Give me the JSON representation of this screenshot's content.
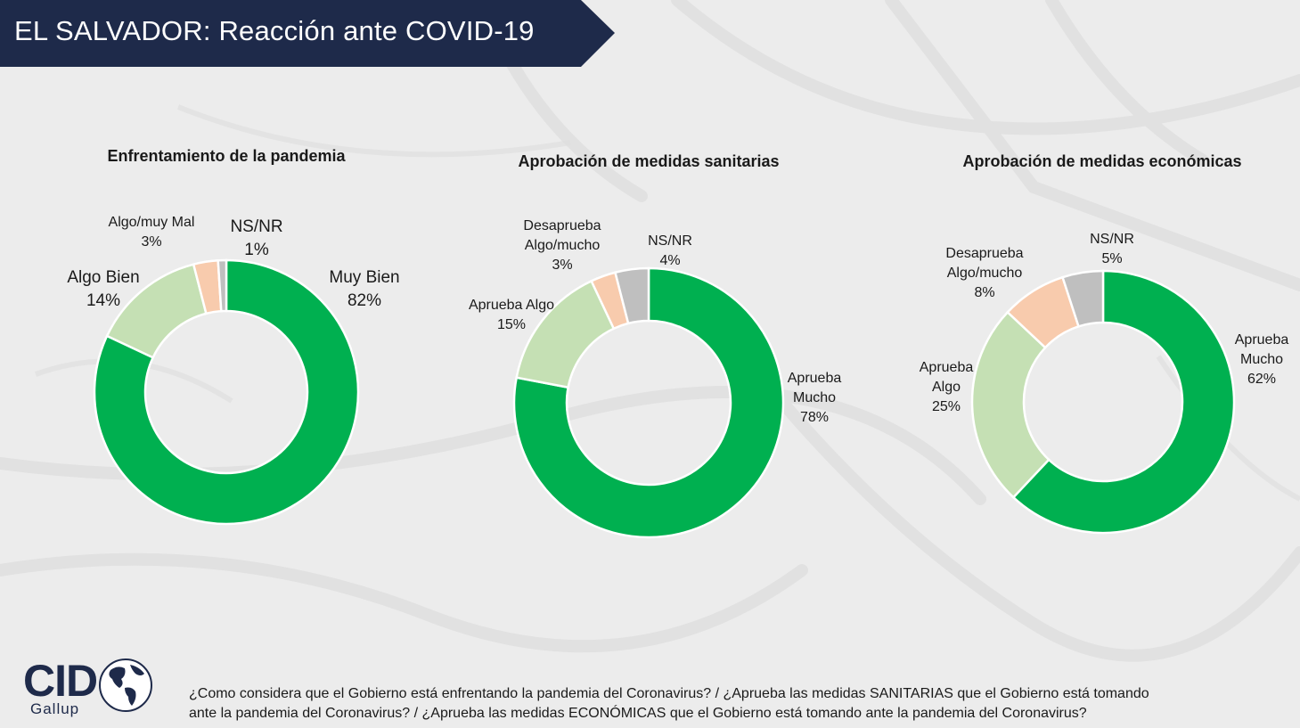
{
  "header": {
    "title": "EL SALVADOR: Reacción ante COVID-19"
  },
  "colors": {
    "banner": "#1e2a4a",
    "dark_green": "#00b050",
    "light_green": "#c5e0b4",
    "peach": "#f8cbad",
    "gray": "#bfbfbf"
  },
  "chart_data": [
    {
      "type": "pie",
      "title": "Enfrentamiento de la pandemia",
      "slices": [
        {
          "label": [
            "Muy Bien",
            "82%"
          ],
          "value": 82,
          "color": "#00b050"
        },
        {
          "label": [
            "Algo Bien",
            "14%"
          ],
          "value": 14,
          "color": "#c5e0b4"
        },
        {
          "label": [
            "Algo/muy Mal",
            "3%"
          ],
          "value": 3,
          "color": "#f8cbad"
        },
        {
          "label": [
            "NS/NR",
            "1%"
          ],
          "value": 1,
          "color": "#bfbfbf"
        }
      ]
    },
    {
      "type": "pie",
      "title": "Aprobación de medidas sanitarias",
      "slices": [
        {
          "label": [
            "Aprueba",
            "Mucho",
            "78%"
          ],
          "value": 78,
          "color": "#00b050"
        },
        {
          "label": [
            "Aprueba Algo",
            "15%"
          ],
          "value": 15,
          "color": "#c5e0b4"
        },
        {
          "label": [
            "Desaprueba",
            "Algo/mucho",
            "3%"
          ],
          "value": 3,
          "color": "#f8cbad"
        },
        {
          "label": [
            "NS/NR",
            "4%"
          ],
          "value": 4,
          "color": "#bfbfbf"
        }
      ]
    },
    {
      "type": "pie",
      "title": "Aprobación de medidas económicas",
      "slices": [
        {
          "label": [
            "Aprueba",
            "Mucho",
            "62%"
          ],
          "value": 62,
          "color": "#00b050"
        },
        {
          "label": [
            "Aprueba",
            "Algo",
            "25%"
          ],
          "value": 25,
          "color": "#c5e0b4"
        },
        {
          "label": [
            "Desaprueba",
            "Algo/mucho",
            "8%"
          ],
          "value": 8,
          "color": "#f8cbad"
        },
        {
          "label": [
            "NS/NR",
            "5%"
          ],
          "value": 5,
          "color": "#bfbfbf"
        }
      ]
    }
  ],
  "footer": {
    "note_line1": "¿Como considera que el Gobierno está enfrentando la pandemia del Coronavirus? / ¿Aprueba las medidas SANITARIAS que el Gobierno está tomando",
    "note_line2": "ante la pandemia del Coronavirus? / ¿Aprueba las medidas ECONÓMICAS que el Gobierno está tomando ante la pandemia del Coronavirus?",
    "logo_text": "CID",
    "logo_sub": "Gallup"
  }
}
